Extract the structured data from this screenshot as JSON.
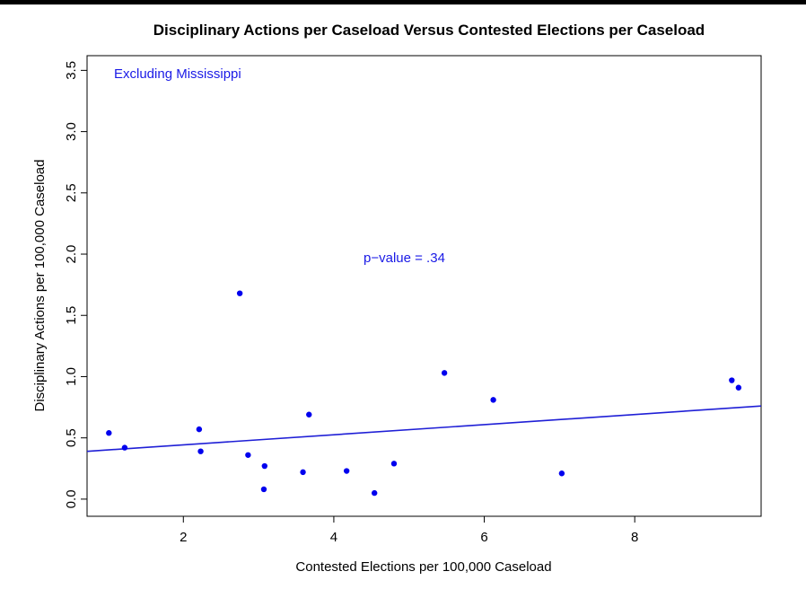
{
  "colors": {
    "points": "#0000ee",
    "fit_line": "#1f1fd6",
    "annotation": "#1a1ae6",
    "axis": "#000000"
  },
  "chart_data": {
    "type": "scatter",
    "title": "Disciplinary Actions per Caseload Versus Contested Elections per Caseload",
    "xlabel": "Contested Elections per 100,000 Caseload",
    "ylabel": "Disciplinary Actions per 100,000 Caseload",
    "xlim": [
      0.72,
      9.68
    ],
    "ylim": [
      -0.14,
      3.62
    ],
    "xticks": [
      2,
      4,
      6,
      8
    ],
    "yticks": [
      0.0,
      0.5,
      1.0,
      1.5,
      2.0,
      2.5,
      3.0,
      3.5
    ],
    "xtick_labels": [
      "2",
      "4",
      "6",
      "8"
    ],
    "ytick_labels": [
      "0.0",
      "0.5",
      "1.0",
      "1.5",
      "2.0",
      "2.5",
      "3.0",
      "3.5"
    ],
    "grid": false,
    "annotations": [
      "Excluding Mississippi",
      "p−value = .34"
    ],
    "fit_line": {
      "x": [
        0.72,
        9.68
      ],
      "y": [
        0.39,
        0.76
      ]
    },
    "x": [
      1.01,
      1.22,
      2.21,
      2.23,
      2.75,
      2.86,
      3.08,
      3.07,
      3.59,
      3.67,
      4.17,
      4.54,
      4.8,
      5.47,
      6.12,
      7.03,
      9.29,
      9.38
    ],
    "y": [
      0.54,
      0.42,
      0.57,
      0.39,
      1.68,
      0.36,
      0.27,
      0.08,
      0.22,
      0.69,
      0.23,
      0.05,
      0.29,
      1.03,
      0.81,
      0.21,
      0.97,
      0.91
    ]
  }
}
